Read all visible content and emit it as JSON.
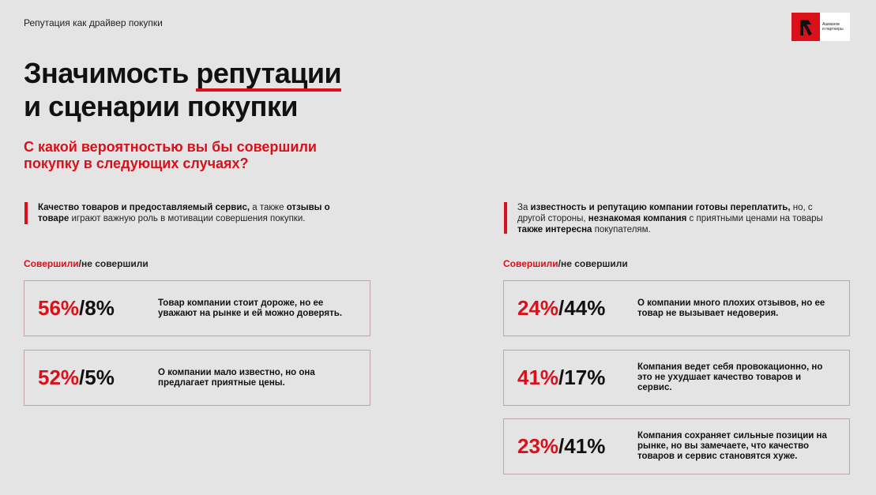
{
  "header": {
    "section_label": "Репутация как драйвер покупки"
  },
  "logo": {
    "text_line1": "Ашманов",
    "text_line2": "и партнеры"
  },
  "title": {
    "line1_prefix": "Значимость ",
    "line1_highlight": "репутации",
    "line2": "и сценарии покупки"
  },
  "subtitle": "С какой вероятностью вы бы совершили покупку в следующих случаях?",
  "left": {
    "note": {
      "b1": "Качество товаров и предоставляемый сервис,",
      "t1": " а также ",
      "b2": "отзывы о товаре",
      "t2": " играют важную роль в мотивации совершения покупки."
    },
    "legend": {
      "did": "Совершили",
      "not": "/не совершили"
    },
    "cards": [
      {
        "did": "56%",
        "not": "/8%",
        "text": "Товар компании стоит дороже, но ее уважают на рынке и ей можно доверять."
      },
      {
        "did": "52%",
        "not": "/5%",
        "text": "О компании мало известно, но она предлагает приятные цены."
      }
    ]
  },
  "right": {
    "note": {
      "t1": "За ",
      "b1": "известность и репутацию компании готовы переплатить,",
      "t2": " но, с другой стороны, ",
      "b2": "незнакомая компания",
      "t3": " с приятными ценами на товары ",
      "b3": "также интересна",
      "t4": " покупателям."
    },
    "legend": {
      "did": "Совершили",
      "not": "/не совершили"
    },
    "cards": [
      {
        "did": "24%",
        "not": "/44%",
        "text": "О компании много плохих отзывов, но ее товар не вызывает недоверия."
      },
      {
        "did": "41%",
        "not": "/17%",
        "text": "Компания ведет себя провокационно, но это не ухудшает качество товаров и сервис."
      },
      {
        "did": "23%",
        "not": "/41%",
        "text": "Компания сохраняет сильные позиции на рынке, но вы замечаете, что качество товаров и сервис становятся хуже."
      }
    ]
  },
  "colors": {
    "accent": "#d8111b",
    "background": "#e4e4e4",
    "card_border": "#c3a4a4"
  }
}
